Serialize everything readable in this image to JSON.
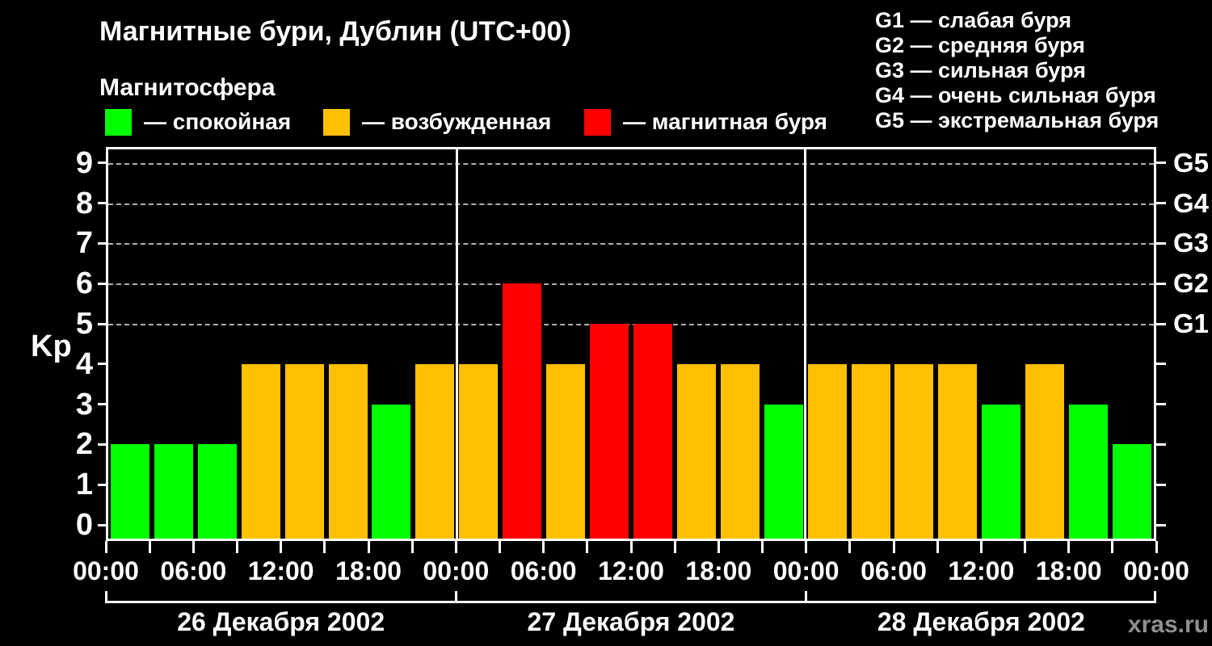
{
  "title": "Магнитные бури, Дублин (UTC+00)",
  "subtitle": "Магнитосфера",
  "legend": {
    "items": [
      {
        "key": "quiet",
        "color": "#00ff00",
        "label": "— спокойная"
      },
      {
        "key": "excited",
        "color": "#ffc000",
        "label": "— возбужденная"
      },
      {
        "key": "storm",
        "color": "#ff0000",
        "label": "— магнитная буря"
      }
    ]
  },
  "g_scale_legend": [
    "G1 — слабая буря",
    "G2 — средняя буря",
    "G3 — сильная буря",
    "G4 — очень сильная буря",
    "G5 — экстремальная буря"
  ],
  "watermark": "xras.ru",
  "chart_data": {
    "type": "bar",
    "title": "Магнитные бури, Дублин (UTC+00)",
    "ylabel": "Kp",
    "ylim": [
      0,
      9
    ],
    "y_ticks": [
      0,
      1,
      2,
      3,
      4,
      5,
      6,
      7,
      8,
      9
    ],
    "gridlines_at_kp": [
      5,
      6,
      7,
      8,
      9
    ],
    "grid_style": "dashed",
    "right_axis": [
      {
        "kp": 5,
        "label": "G1"
      },
      {
        "kp": 6,
        "label": "G2"
      },
      {
        "kp": 7,
        "label": "G3"
      },
      {
        "kp": 8,
        "label": "G4"
      },
      {
        "kp": 9,
        "label": "G5"
      }
    ],
    "bar_interval_hours": 3,
    "x_tick_labels": [
      "00:00",
      "06:00",
      "12:00",
      "18:00",
      "00:00",
      "06:00",
      "12:00",
      "18:00",
      "00:00",
      "06:00",
      "12:00",
      "18:00",
      "00:00"
    ],
    "days": [
      {
        "date": "26 Декабря 2002",
        "kp_values": [
          2,
          2,
          2,
          4,
          4,
          4,
          3,
          4
        ]
      },
      {
        "date": "27 Декабря 2002",
        "kp_values": [
          4,
          6,
          4,
          5,
          5,
          4,
          4,
          3
        ]
      },
      {
        "date": "28 Декабря 2002",
        "kp_values": [
          4,
          4,
          4,
          4,
          3,
          4,
          3,
          2
        ]
      }
    ],
    "color_rule": {
      "quiet_kp_max": 3,
      "excited_kp": 4,
      "storm_kp_min": 5
    },
    "colors": {
      "quiet": "#00ff00",
      "excited": "#ffc000",
      "storm": "#ff0000"
    },
    "background": "#000000",
    "frame_color": "#ffffff"
  }
}
